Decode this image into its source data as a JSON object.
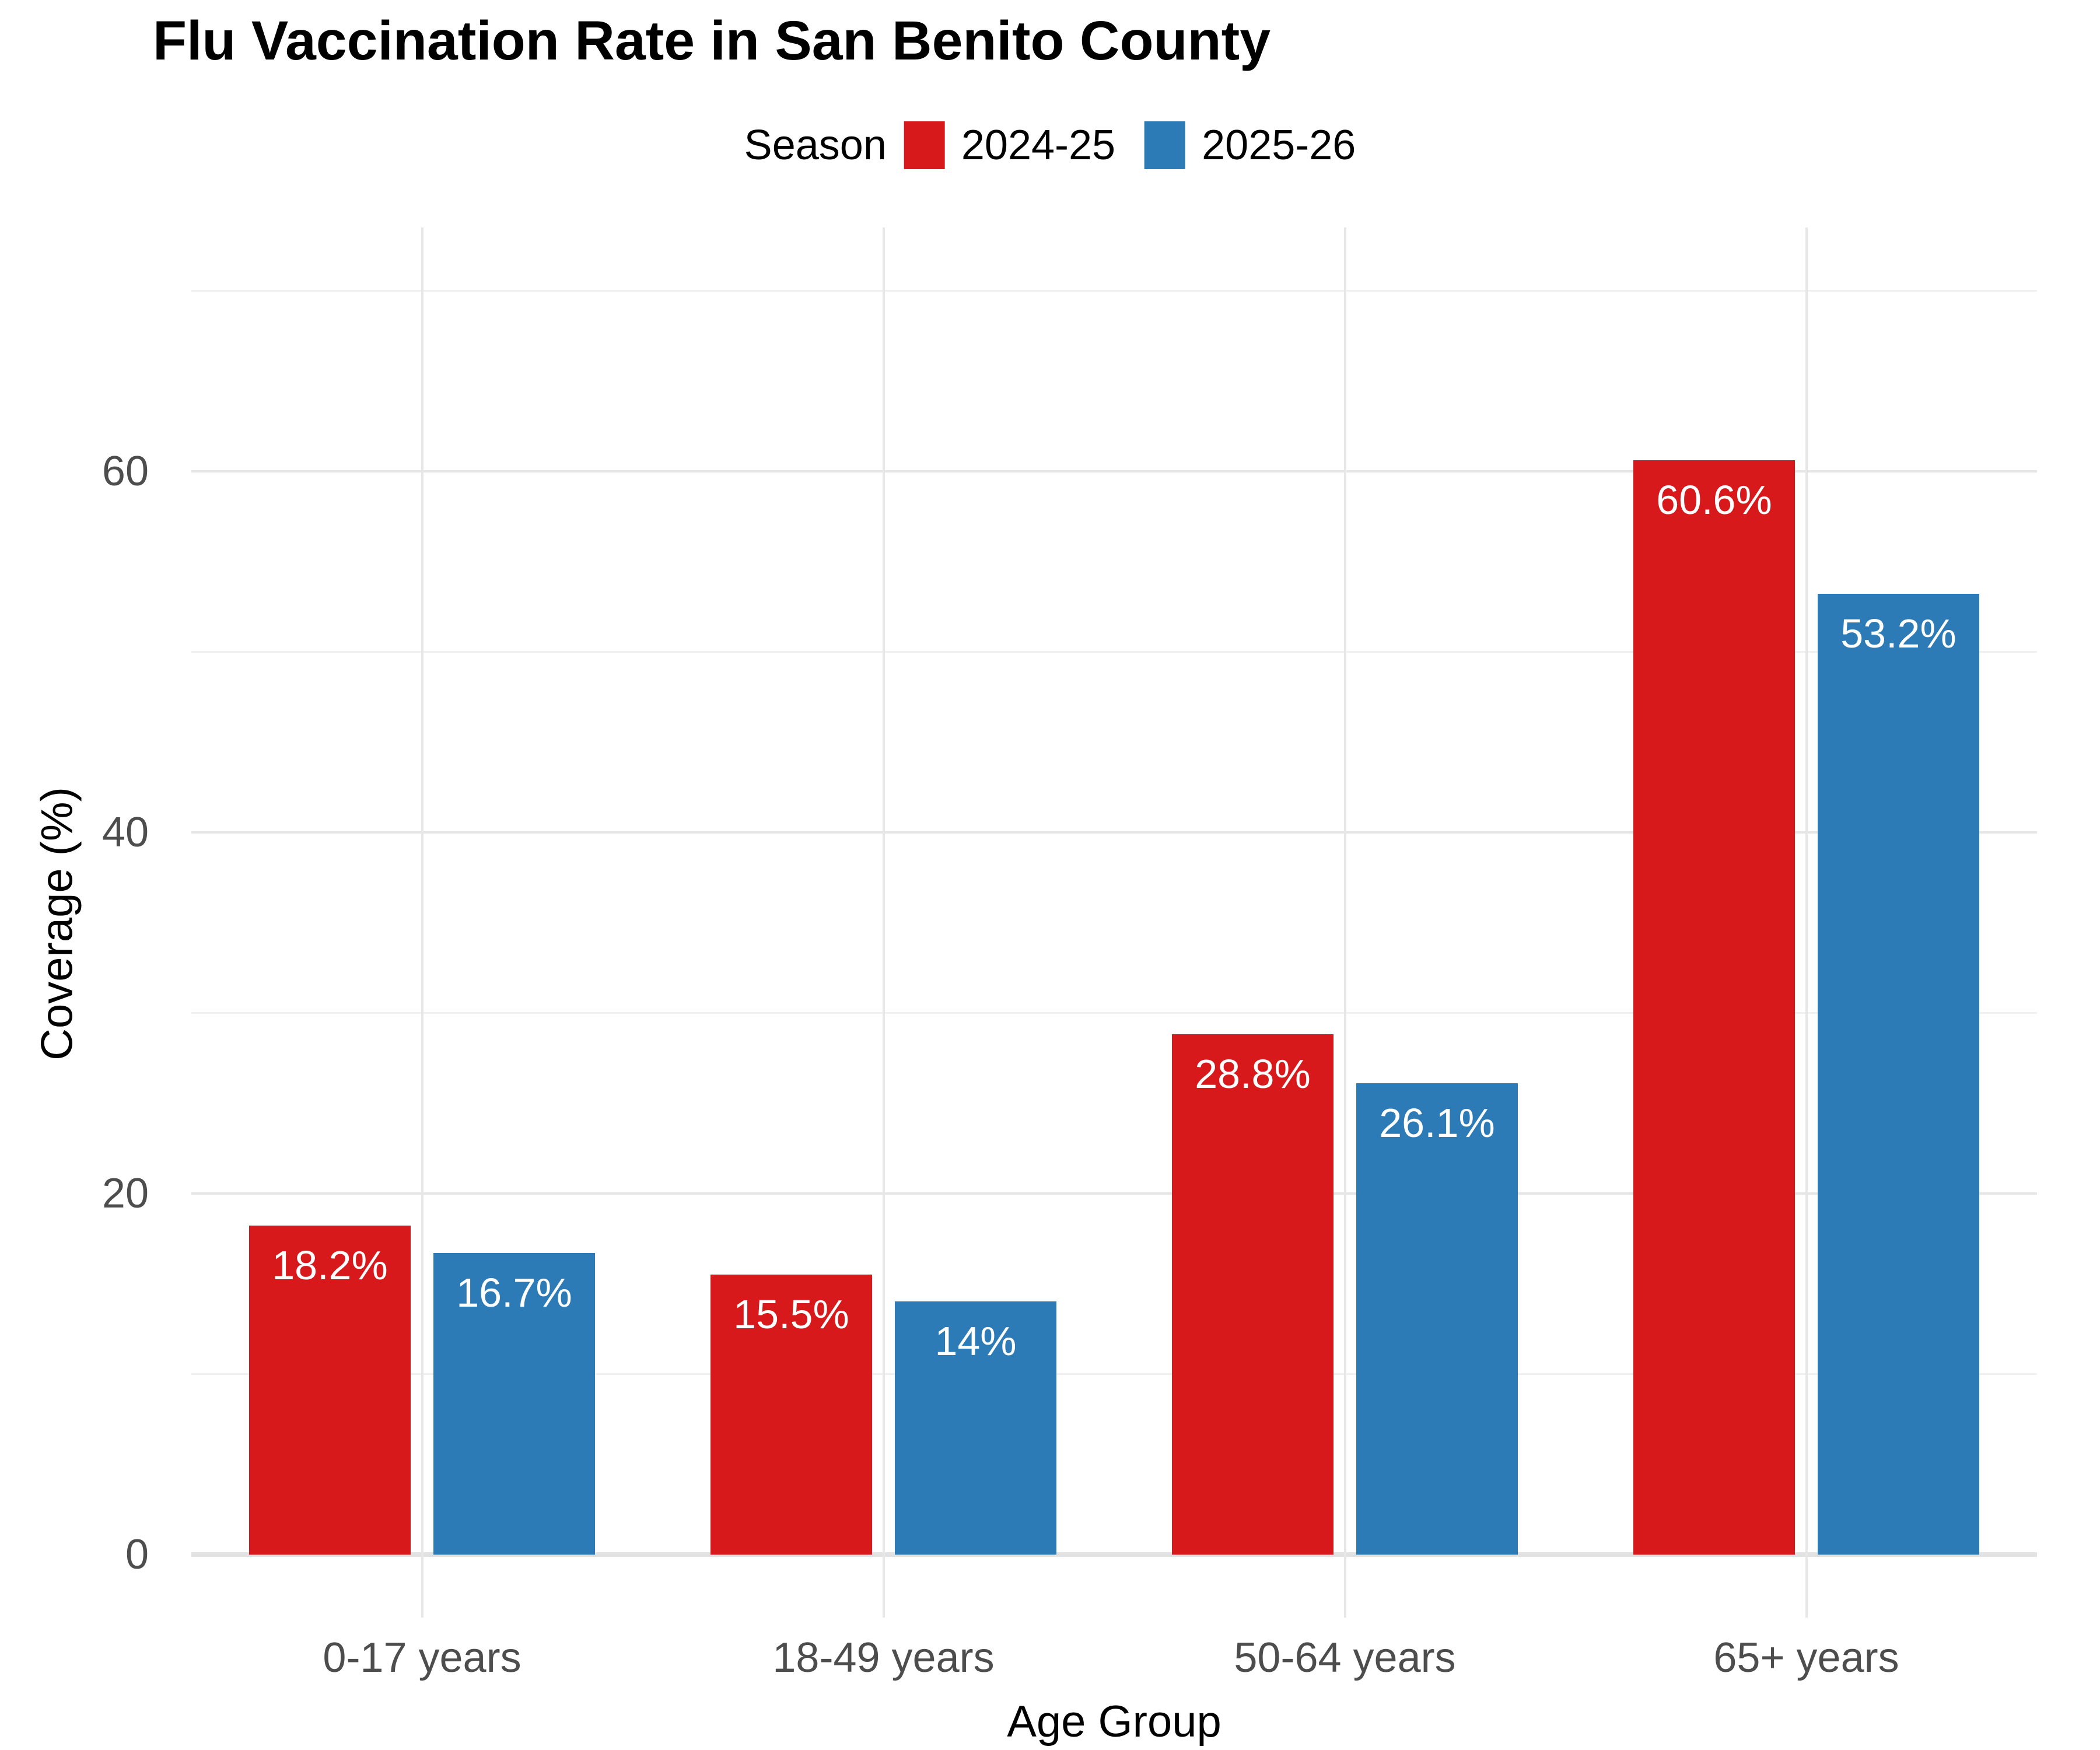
{
  "title": "Flu Vaccination Rate in San Benito County",
  "legend": {
    "title": "Season",
    "items": [
      {
        "label": "2024-25",
        "color": "#D7191C"
      },
      {
        "label": "2025-26",
        "color": "#2C7BB6"
      }
    ]
  },
  "x_axis": {
    "title": "Age Group"
  },
  "y_axis": {
    "title": "Coverage (%)"
  },
  "colors": {
    "series_2024_25": "#D7191C",
    "series_2025_26": "#2C7BB6",
    "grid_major": "#E6E6E6",
    "grid_minor": "#F0F0F0",
    "tick_text": "#4D4D4D"
  },
  "chart_data": {
    "type": "bar",
    "title": "Flu Vaccination Rate in San Benito County",
    "xlabel": "Age Group",
    "ylabel": "Coverage (%)",
    "categories": [
      "0-17 years",
      "18-49 years",
      "50-64 years",
      "65+ years"
    ],
    "series": [
      {
        "name": "2024-25",
        "color": "#D7191C",
        "values": [
          18.2,
          15.5,
          28.8,
          60.6
        ],
        "labels": [
          "18.2%",
          "15.5%",
          "28.8%",
          "60.6%"
        ]
      },
      {
        "name": "2025-26",
        "color": "#2C7BB6",
        "values": [
          16.7,
          14,
          26.1,
          53.2
        ],
        "labels": [
          "16.7%",
          "14%",
          "26.1%",
          "53.2%"
        ]
      }
    ],
    "ylim": [
      0,
      70
    ],
    "panel_value_range": [
      -3.5,
      73.5
    ],
    "major_ticks": [
      0,
      20,
      40,
      60
    ],
    "minor_ticks": [
      10,
      30,
      50,
      70
    ],
    "grid": true,
    "legend_position": "top",
    "bar_label_position": "inside-top"
  }
}
